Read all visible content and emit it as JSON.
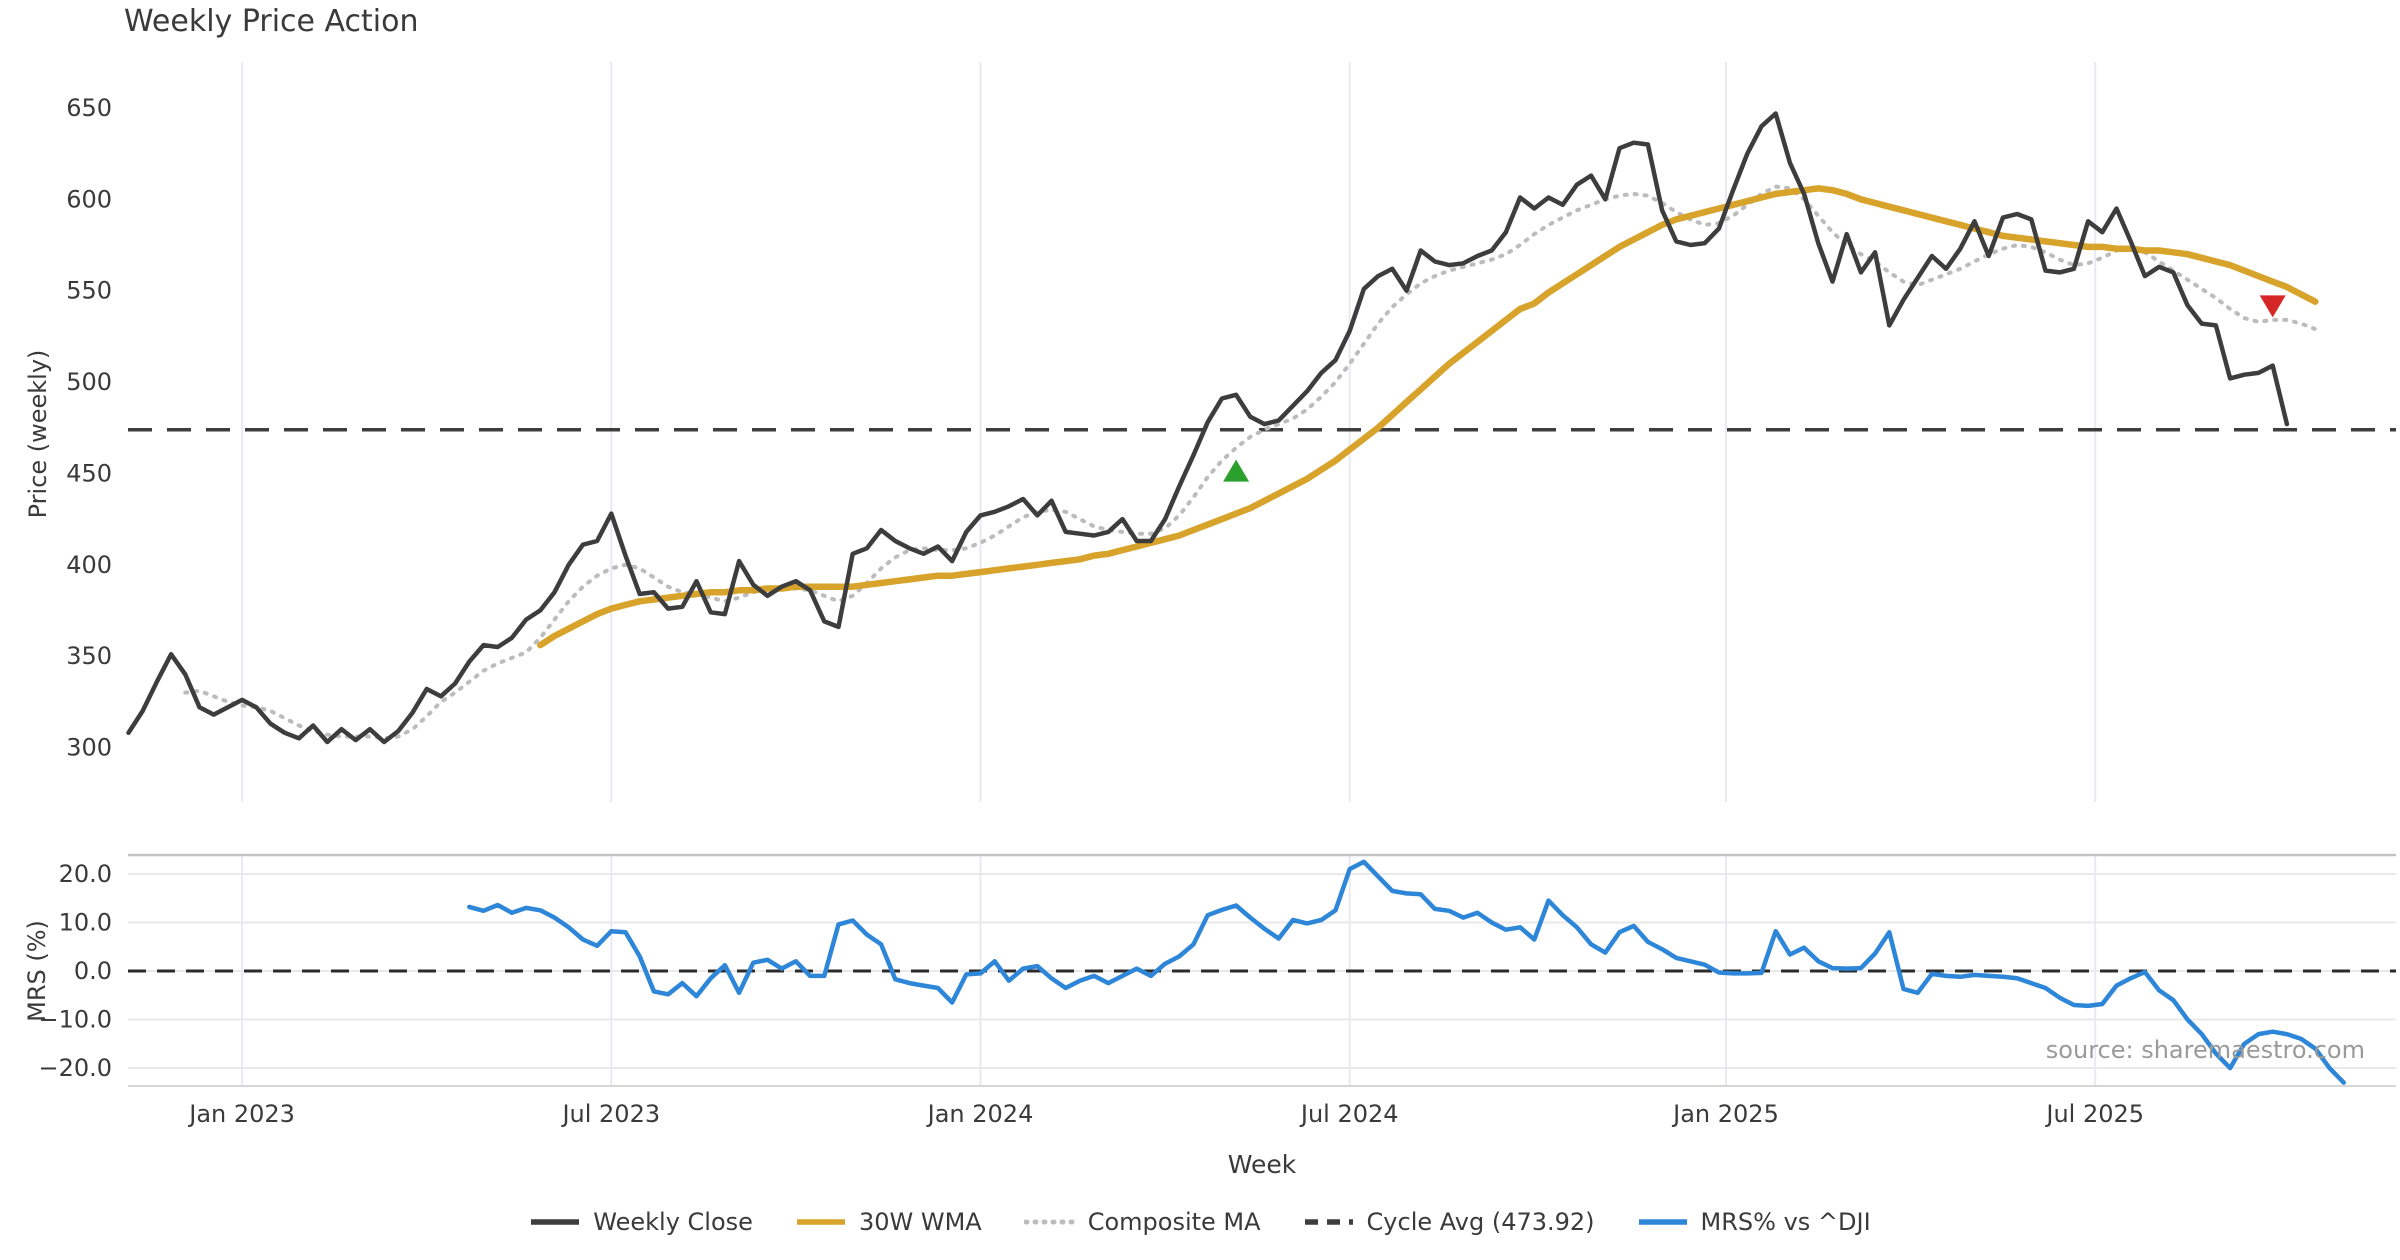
{
  "title": "Weekly Price Action",
  "source_note": "source: sharemaestro.com",
  "colors": {
    "weekly_close": "#3d3d3d",
    "wma30": "#d7a32b",
    "composite_ma": "#bcbcbc",
    "cycle_avg": "#3d3d3d",
    "mrs": "#2e86d8",
    "buy_marker": "#2ca02c",
    "sell_marker": "#d62728",
    "gridline_vertical": "#e7eaf1",
    "gridline_horizontal": "#e9e9e9",
    "tick_text": "#3a3a3a",
    "source_text": "#9a9a9a"
  },
  "axes": {
    "price": {
      "label": "Price (weekly)",
      "tick_labels": [
        "650",
        "600",
        "550",
        "500",
        "450",
        "400",
        "350",
        "300"
      ],
      "tick_values": [
        650,
        600,
        550,
        500,
        450,
        400,
        350,
        300
      ],
      "ylim": [
        270,
        675
      ]
    },
    "mrs": {
      "label": "MRS (%)",
      "tick_labels": [
        "20.0",
        "10.0",
        "0.0",
        "−10.0",
        "−20.0"
      ],
      "tick_values": [
        20,
        10,
        0,
        -10,
        -20
      ],
      "ylim": [
        -23.7,
        23.9
      ]
    },
    "x": {
      "label": "Week",
      "ticks": [
        {
          "label": "Jan 2023",
          "week": 8
        },
        {
          "label": "Jul 2023",
          "week": 34
        },
        {
          "label": "Jan 2024",
          "week": 60
        },
        {
          "label": "Jul 2024",
          "week": 86
        },
        {
          "label": "Jan 2025",
          "week": 112.5
        },
        {
          "label": "Jul 2025",
          "week": 138.5
        }
      ]
    }
  },
  "legend": {
    "items": [
      {
        "label": "Weekly Close",
        "color": "#3d3d3d",
        "style": "solid"
      },
      {
        "label": "30W WMA",
        "color": "#d7a32b",
        "style": "solid"
      },
      {
        "label": "Composite MA",
        "color": "#bcbcbc",
        "style": "dotted"
      },
      {
        "label": "Cycle Avg (473.92)",
        "color": "#3d3d3d",
        "style": "dashed"
      },
      {
        "label": "MRS% vs ^DJI",
        "color": "#2e86d8",
        "style": "solid"
      }
    ]
  },
  "chart_data": [
    {
      "type": "line",
      "panel": "price",
      "title": "Weekly Price Action",
      "xlabel": "Week",
      "ylabel": "Price (weekly)",
      "x_unit": "week_index",
      "ylim": [
        270,
        675
      ],
      "grid": "vertical-only",
      "cycle_avg": 473.92,
      "series": [
        {
          "name": "Weekly Close",
          "color": "#3d3d3d",
          "style": "solid",
          "start_week": 0,
          "values": [
            308,
            320,
            336,
            351,
            340,
            322,
            318,
            322,
            326,
            322,
            313,
            308,
            305,
            312,
            303,
            310,
            304,
            310,
            303,
            309,
            319,
            332,
            328,
            335,
            347,
            356,
            355,
            360,
            370,
            375,
            385,
            400,
            411,
            413,
            428,
            405,
            384,
            385,
            376,
            377,
            391,
            374,
            373,
            402,
            389,
            383,
            388,
            391,
            386,
            369,
            366,
            406,
            409,
            419,
            413,
            409,
            406,
            410,
            402,
            418,
            427,
            429,
            432,
            436,
            427,
            435,
            418,
            417,
            416,
            418,
            425,
            413,
            413,
            425,
            443,
            460,
            478,
            491,
            493,
            481,
            477,
            479,
            487,
            495,
            505,
            512,
            528,
            551,
            558,
            562,
            550,
            572,
            566,
            564,
            565,
            569,
            572,
            582,
            601,
            595,
            601,
            597,
            608,
            613,
            600,
            628,
            631,
            630,
            594,
            577,
            575,
            576,
            584,
            605,
            625,
            640,
            647,
            620,
            603,
            576,
            555,
            581,
            560,
            571,
            531,
            545,
            557,
            569,
            562,
            573,
            588,
            569,
            590,
            592,
            589,
            561,
            560,
            562,
            588,
            582,
            595,
            577,
            558,
            563,
            560,
            542,
            532,
            531,
            502,
            504,
            505,
            509,
            477
          ]
        },
        {
          "name": "30W WMA",
          "color": "#d7a32b",
          "style": "solid",
          "start_week": 29,
          "values": [
            356,
            361,
            365,
            369,
            373,
            376,
            378,
            380,
            381,
            382,
            383,
            384,
            385,
            385,
            386,
            386,
            387,
            387,
            388,
            388,
            388,
            388,
            388,
            389,
            390,
            391,
            392,
            393,
            394,
            394,
            395,
            396,
            397,
            398,
            399,
            400,
            401,
            402,
            403,
            405,
            406,
            408,
            410,
            412,
            414,
            416,
            419,
            422,
            425,
            428,
            431,
            435,
            439,
            443,
            447,
            452,
            457,
            463,
            469,
            475,
            482,
            489,
            496,
            503,
            510,
            516,
            522,
            528,
            534,
            540,
            543,
            549,
            554,
            559,
            564,
            569,
            574,
            578,
            582,
            586,
            589,
            591,
            593,
            595,
            597,
            599,
            601,
            603,
            604,
            605,
            606,
            605,
            603,
            600,
            598,
            596,
            594,
            592,
            590,
            588,
            586,
            584,
            582,
            580,
            579,
            578,
            577,
            576,
            575,
            574,
            574,
            573,
            573,
            572,
            572,
            571,
            570,
            568,
            566,
            564,
            561,
            558,
            555,
            552,
            548,
            544
          ]
        },
        {
          "name": "Composite MA",
          "color": "#bcbcbc",
          "style": "dotted",
          "start_week": 4,
          "values": [
            330,
            331,
            328,
            325,
            323,
            322,
            320,
            316,
            312,
            309,
            307,
            306,
            306,
            306,
            305,
            306,
            310,
            317,
            325,
            330,
            336,
            342,
            346,
            349,
            352,
            360,
            370,
            380,
            388,
            394,
            398,
            400,
            398,
            393,
            388,
            385,
            384,
            382,
            380,
            382,
            385,
            387,
            387,
            387,
            386,
            383,
            380,
            383,
            390,
            398,
            404,
            408,
            409,
            408,
            408,
            409,
            412,
            416,
            421,
            426,
            429,
            430,
            429,
            425,
            421,
            419,
            418,
            417,
            417,
            420,
            427,
            437,
            448,
            457,
            464,
            470,
            474,
            477,
            480,
            485,
            492,
            500,
            510,
            521,
            532,
            541,
            548,
            554,
            558,
            561,
            563,
            565,
            567,
            570,
            575,
            581,
            586,
            590,
            594,
            597,
            600,
            602,
            603,
            602,
            598,
            593,
            589,
            586,
            587,
            591,
            597,
            603,
            607,
            606,
            600,
            591,
            582,
            575,
            570,
            566,
            560,
            555,
            553,
            556,
            559,
            562,
            566,
            570,
            573,
            575,
            574,
            571,
            567,
            564,
            565,
            568,
            572,
            574,
            571,
            566,
            561,
            556,
            551,
            546,
            540,
            535,
            533,
            534,
            534,
            532,
            529
          ]
        },
        {
          "name": "Cycle Avg",
          "color": "#3d3d3d",
          "style": "dashed",
          "constant_value": 473.92
        }
      ],
      "markers": [
        {
          "name": "buy-signal",
          "shape": "triangle-up",
          "color": "#2ca02c",
          "week": 78,
          "price": 451
        },
        {
          "name": "sell-signal",
          "shape": "triangle-down",
          "color": "#d62728",
          "week": 151,
          "price": 542
        }
      ]
    },
    {
      "type": "line",
      "panel": "mrs",
      "ylabel": "MRS (%)",
      "x_unit": "week_index",
      "ylim": [
        -23.7,
        23.9
      ],
      "grid": "both",
      "zero_line": "dashed",
      "series": [
        {
          "name": "MRS% vs ^DJI",
          "color": "#2e86d8",
          "style": "solid",
          "start_week": 24,
          "values": [
            13.2,
            12.4,
            13.6,
            12.0,
            13.0,
            12.5,
            11.0,
            9.0,
            6.5,
            5.2,
            8.2,
            8.0,
            3.0,
            -4.2,
            -4.8,
            -2.5,
            -5.2,
            -1.5,
            1.2,
            -4.5,
            1.7,
            2.3,
            0.5,
            2.0,
            -1.0,
            -1.0,
            9.6,
            10.4,
            7.5,
            5.5,
            -1.7,
            -2.5,
            -3.0,
            -3.5,
            -6.5,
            -0.7,
            -0.5,
            2.0,
            -2.0,
            0.5,
            1.0,
            -1.5,
            -3.5,
            -2.0,
            -1.0,
            -2.5,
            -1.0,
            0.5,
            -1.0,
            1.5,
            3.0,
            5.5,
            11.5,
            12.6,
            13.5,
            11.0,
            8.7,
            6.7,
            10.5,
            9.8,
            10.5,
            12.5,
            21.0,
            22.5,
            19.5,
            16.5,
            16.0,
            15.8,
            12.8,
            12.4,
            11.0,
            12.0,
            10.0,
            8.5,
            9.0,
            6.5,
            14.5,
            11.5,
            9.0,
            5.5,
            3.8,
            8.0,
            9.3,
            6.0,
            4.5,
            2.7,
            2.0,
            1.3,
            -0.3,
            -0.5,
            -0.5,
            -0.4,
            8.2,
            3.4,
            4.8,
            2.0,
            0.6,
            0.5,
            0.6,
            3.6,
            8.0,
            -3.7,
            -4.5,
            -0.6,
            -1.0,
            -1.2,
            -0.8,
            -1.0,
            -1.2,
            -1.5,
            -2.5,
            -3.5,
            -5.5,
            -7.0,
            -7.2,
            -6.8,
            -3.0,
            -1.5,
            -0.2,
            -4.0,
            -6.0,
            -10.0,
            -13.0,
            -17.0,
            -20.0,
            -15.0,
            -13.0,
            -12.5,
            -13.0,
            -14.0,
            -16.0,
            -20.0,
            -23.0
          ]
        }
      ]
    }
  ]
}
